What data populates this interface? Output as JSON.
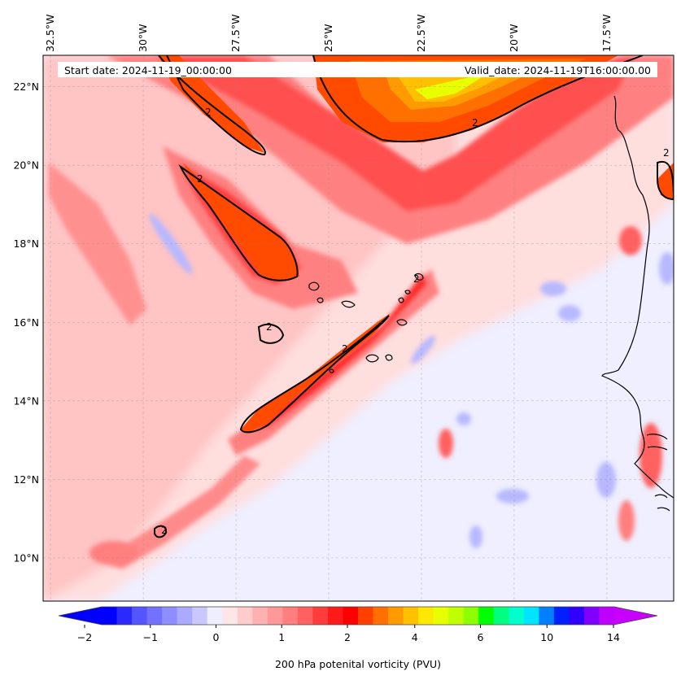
{
  "header": {
    "start_date": "Start date: 2024-11-19_00:00:00",
    "valid_date": "Valid_date: 2024-11-19T16:00:00.00"
  },
  "map": {
    "lon_range": [
      -32.7,
      -15.7
    ],
    "lat_range": [
      8.9,
      22.8
    ],
    "lon_ticks": [
      "32.5°W",
      "30°W",
      "27.5°W",
      "25°W",
      "22.5°W",
      "20°W",
      "17.5°W"
    ],
    "lon_tick_values": [
      -32.5,
      -30,
      -27.5,
      -25,
      -22.5,
      -20,
      -17.5
    ],
    "lat_ticks": [
      "22°N",
      "20°N",
      "18°N",
      "16°N",
      "14°N",
      "12°N",
      "10°N"
    ],
    "lat_tick_values": [
      22,
      20,
      18,
      16,
      14,
      12,
      10
    ],
    "gridlines": true,
    "contour_level_label": "2"
  },
  "colorbar": {
    "label": "200 hPa potenital vorticity (PVU)",
    "tick_labels": [
      "−2",
      "−1",
      "0",
      "1",
      "2",
      "4",
      "6",
      "10",
      "14"
    ],
    "tick_values": [
      -2,
      -1,
      0,
      1,
      2,
      4,
      6,
      10,
      14
    ],
    "extend": "both",
    "colors": [
      "#0000ff",
      "#2a2aff",
      "#5555ff",
      "#7272ff",
      "#8e8eff",
      "#aaaaff",
      "#c8c8ff",
      "#eeeeff",
      "#ffe6e6",
      "#ffcccc",
      "#ffb0b0",
      "#ff9999",
      "#ff7f7f",
      "#ff6060",
      "#ff3c3c",
      "#ff1a1a",
      "#ff0000",
      "#ff4000",
      "#ff7000",
      "#ff9a00",
      "#ffc000",
      "#ffe800",
      "#e8ff00",
      "#bfff00",
      "#8cff00",
      "#00ff00",
      "#00ff80",
      "#00ffcc",
      "#00e5ff",
      "#0080ff",
      "#0020ff",
      "#3000ff",
      "#8000ff",
      "#c000ff"
    ],
    "under_color": "#0000ff",
    "over_color": "#c800ff"
  }
}
